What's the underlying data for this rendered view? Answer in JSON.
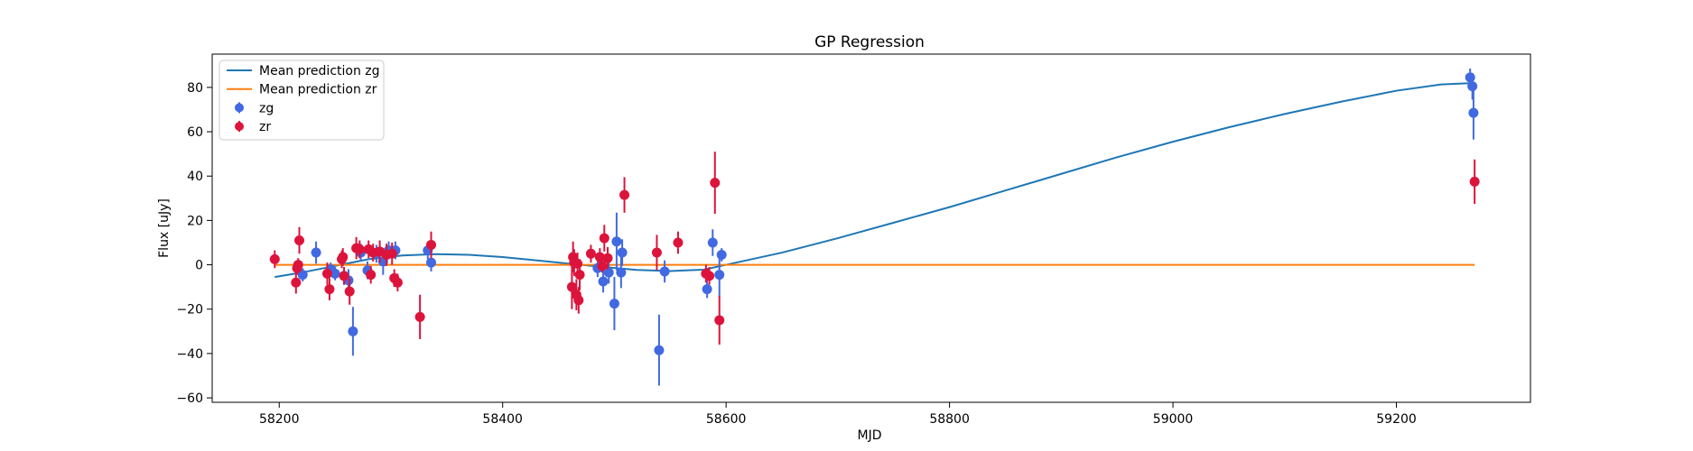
{
  "chart_data": {
    "type": "scatter",
    "title": "GP Regression",
    "xlabel": "MJD",
    "ylabel": "Flux [uJy]",
    "xlim": [
      58140,
      59320
    ],
    "ylim": [
      -62,
      95
    ],
    "x_ticks": [
      58200,
      58400,
      58600,
      58800,
      59000,
      59200
    ],
    "y_ticks": [
      -60,
      -40,
      -20,
      0,
      20,
      40,
      60,
      80
    ],
    "x_tick_labels": [
      "58200",
      "58400",
      "58600",
      "58800",
      "59000",
      "59200"
    ],
    "y_tick_labels": [
      "−60",
      "−40",
      "−20",
      "0",
      "20",
      "40",
      "60",
      "80"
    ],
    "grid": false,
    "legend_position": "top-left",
    "legend": [
      {
        "label": "Mean prediction zg",
        "kind": "line",
        "color": "#1f77b4"
      },
      {
        "label": "Mean prediction zr",
        "kind": "line",
        "color": "#ff7f0e"
      },
      {
        "label": "zg",
        "kind": "errorbar",
        "color": "#4169e1"
      },
      {
        "label": "zr",
        "kind": "errorbar",
        "color": "#dc143c"
      }
    ],
    "lines": [
      {
        "name": "Mean prediction zg",
        "color": "#1f77b4",
        "x": [
          58196,
          58220,
          58250,
          58280,
          58310,
          58340,
          58370,
          58400,
          58430,
          58460,
          58490,
          58520,
          58550,
          58580,
          58600,
          58650,
          58700,
          58750,
          58800,
          58850,
          58900,
          58950,
          59000,
          59050,
          59100,
          59150,
          59200,
          59240,
          59270
        ],
        "y": [
          -5.5,
          -3.5,
          -0.5,
          2.5,
          4.2,
          4.8,
          4.5,
          3.5,
          2,
          0.5,
          -1,
          -2.3,
          -2.8,
          -2.2,
          0,
          5.5,
          12,
          19,
          26,
          33.5,
          41,
          48.5,
          55.5,
          62,
          68,
          73.5,
          78.5,
          81.3,
          82
        ]
      },
      {
        "name": "Mean prediction zr",
        "color": "#ff7f0e",
        "x": [
          58196,
          59270
        ],
        "y": [
          0,
          0
        ]
      }
    ],
    "series": [
      {
        "name": "zg",
        "color": "#4169e1",
        "points": [
          {
            "x": 58221,
            "y": -4.5,
            "err": 3
          },
          {
            "x": 58233,
            "y": 5.5,
            "err": 5
          },
          {
            "x": 58246,
            "y": -2,
            "err": 3
          },
          {
            "x": 58250,
            "y": -4,
            "err": 3
          },
          {
            "x": 58258,
            "y": -5,
            "err": 4
          },
          {
            "x": 58262,
            "y": -7,
            "err": 5
          },
          {
            "x": 58266,
            "y": -30,
            "err": 11
          },
          {
            "x": 58273,
            "y": 5.5,
            "err": 4
          },
          {
            "x": 58279,
            "y": -2.5,
            "err": 4
          },
          {
            "x": 58287,
            "y": 5,
            "err": 4
          },
          {
            "x": 58293,
            "y": 1.5,
            "err": 6
          },
          {
            "x": 58298,
            "y": 6.5,
            "err": 4
          },
          {
            "x": 58304,
            "y": 6.5,
            "err": 4
          },
          {
            "x": 58333,
            "y": 6.5,
            "err": 4
          },
          {
            "x": 58336,
            "y": 1,
            "err": 4
          },
          {
            "x": 58485,
            "y": -1.5,
            "err": 4
          },
          {
            "x": 58490,
            "y": -7.5,
            "err": 5
          },
          {
            "x": 58495,
            "y": -3.5,
            "err": 5
          },
          {
            "x": 58500,
            "y": -17.5,
            "err": 12
          },
          {
            "x": 58502,
            "y": 10.5,
            "err": 13
          },
          {
            "x": 58506,
            "y": -3.5,
            "err": 7
          },
          {
            "x": 58507,
            "y": 5.5,
            "err": 6
          },
          {
            "x": 58540,
            "y": -38.5,
            "err": 16
          },
          {
            "x": 58545,
            "y": -3,
            "err": 5
          },
          {
            "x": 58583,
            "y": -11,
            "err": 4
          },
          {
            "x": 58588,
            "y": 10,
            "err": 6
          },
          {
            "x": 58594,
            "y": -4.5,
            "err": 10
          },
          {
            "x": 58596,
            "y": 4.5,
            "err": 3
          },
          {
            "x": 59266,
            "y": 84.5,
            "err": 4
          },
          {
            "x": 59268,
            "y": 80.5,
            "err": 6
          },
          {
            "x": 59269,
            "y": 68.5,
            "err": 12
          }
        ]
      },
      {
        "name": "zr",
        "color": "#dc143c",
        "points": [
          {
            "x": 58196,
            "y": 2.5,
            "err": 4
          },
          {
            "x": 58215,
            "y": -8,
            "err": 5
          },
          {
            "x": 58216,
            "y": -1.5,
            "err": 3
          },
          {
            "x": 58217,
            "y": 0,
            "err": 3
          },
          {
            "x": 58218,
            "y": 11,
            "err": 6
          },
          {
            "x": 58243,
            "y": -4,
            "err": 5
          },
          {
            "x": 58245,
            "y": -11,
            "err": 5
          },
          {
            "x": 58256,
            "y": 2.5,
            "err": 4
          },
          {
            "x": 58257,
            "y": 3.5,
            "err": 4
          },
          {
            "x": 58258,
            "y": -5,
            "err": 4
          },
          {
            "x": 58263,
            "y": -12,
            "err": 6
          },
          {
            "x": 58269,
            "y": 7.5,
            "err": 5
          },
          {
            "x": 58272,
            "y": 7,
            "err": 4
          },
          {
            "x": 58280,
            "y": 7,
            "err": 4
          },
          {
            "x": 58282,
            "y": -4.5,
            "err": 4
          },
          {
            "x": 58284,
            "y": 5.5,
            "err": 4
          },
          {
            "x": 58290,
            "y": 6,
            "err": 5
          },
          {
            "x": 58296,
            "y": 4.5,
            "err": 5
          },
          {
            "x": 58301,
            "y": 5,
            "err": 5
          },
          {
            "x": 58303,
            "y": -6,
            "err": 4
          },
          {
            "x": 58306,
            "y": -8,
            "err": 4
          },
          {
            "x": 58326,
            "y": -23.5,
            "err": 10
          },
          {
            "x": 58336,
            "y": 9,
            "err": 6
          },
          {
            "x": 58462,
            "y": -10,
            "err": 10
          },
          {
            "x": 58463,
            "y": 3.5,
            "err": 7
          },
          {
            "x": 58464,
            "y": 1,
            "err": 6
          },
          {
            "x": 58466,
            "y": -13.5,
            "err": 7
          },
          {
            "x": 58467,
            "y": 0.5,
            "err": 5
          },
          {
            "x": 58468,
            "y": -16,
            "err": 6
          },
          {
            "x": 58469,
            "y": -4.5,
            "err": 7
          },
          {
            "x": 58479,
            "y": 5,
            "err": 4
          },
          {
            "x": 58487,
            "y": 3.5,
            "err": 4
          },
          {
            "x": 58489,
            "y": -0.5,
            "err": 3
          },
          {
            "x": 58491,
            "y": 12,
            "err": 6
          },
          {
            "x": 58494,
            "y": 3,
            "err": 5
          },
          {
            "x": 58509,
            "y": 31.5,
            "err": 8
          },
          {
            "x": 58538,
            "y": 5.5,
            "err": 8
          },
          {
            "x": 58557,
            "y": 10,
            "err": 5
          },
          {
            "x": 58582,
            "y": -4,
            "err": 4
          },
          {
            "x": 58585,
            "y": -5,
            "err": 4
          },
          {
            "x": 58590,
            "y": 37,
            "err": 14
          },
          {
            "x": 58594,
            "y": -25,
            "err": 11
          },
          {
            "x": 59270,
            "y": 37.5,
            "err": 10
          }
        ]
      }
    ]
  }
}
